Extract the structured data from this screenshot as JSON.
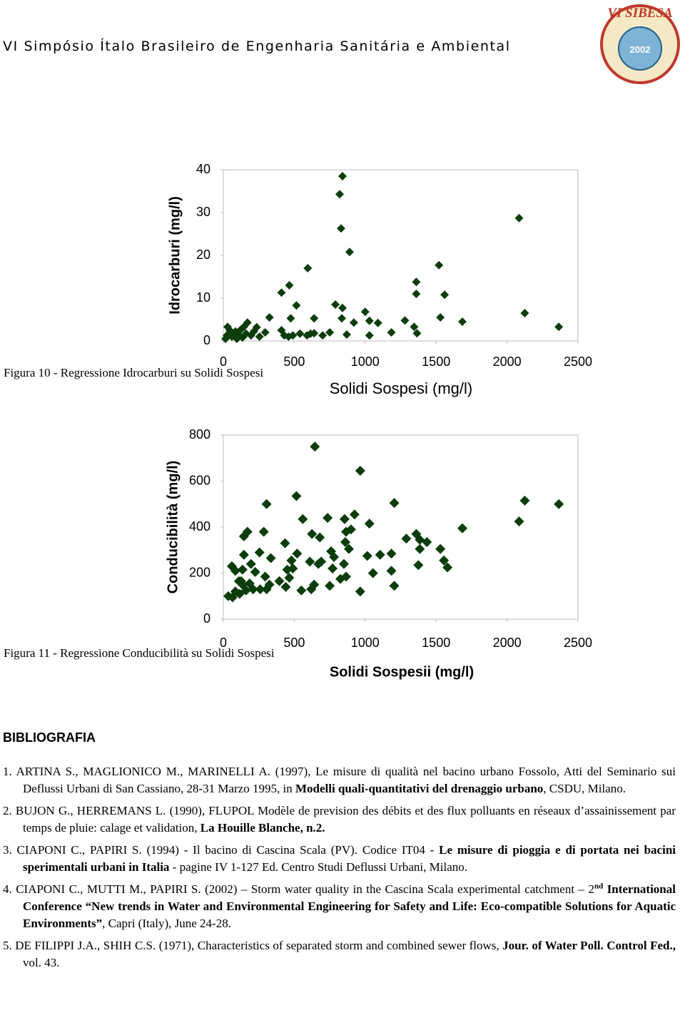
{
  "header": {
    "title": "VI Simpósio Ítalo Brasileiro de Engenharia Sanitária e Ambiental",
    "logo_title": "VI SIBESA",
    "logo_year": "2002"
  },
  "chart_data": [
    {
      "type": "scatter",
      "x_label": "Solidi Sospesi (mg/l)",
      "y_label": "Idrocarburi (mg/l)",
      "color": "#0b3d0b",
      "xlim": [
        0,
        2500
      ],
      "xticks": [
        0,
        500,
        1000,
        1500,
        2000,
        2500
      ],
      "ylim": [
        0,
        40
      ],
      "yticks": [
        0,
        10,
        20,
        30,
        40
      ],
      "x": [
        840,
        820,
        830,
        890,
        2085,
        595,
        1520,
        465,
        410,
        1360,
        1360,
        1560,
        515,
        790,
        325,
        475,
        640,
        840,
        835,
        1000,
        1030,
        920,
        1280,
        1530,
        1685,
        2125,
        2365,
        1090,
        1185,
        1345,
        1365,
        750,
        870,
        1030,
        700,
        540,
        410,
        430,
        460,
        490,
        590,
        615,
        640,
        295,
        255,
        195,
        170,
        145,
        125,
        85,
        45,
        30,
        25,
        60,
        95,
        135,
        215,
        235,
        160,
        15,
        70,
        110
      ],
      "values": [
        38.5,
        34.3,
        26.3,
        20.8,
        28.7,
        17,
        17.7,
        13,
        11.3,
        13.8,
        11,
        10.8,
        8.3,
        8.5,
        5.5,
        5.3,
        5.3,
        7.7,
        5.3,
        6.8,
        4.7,
        4.3,
        4.8,
        5.5,
        4.5,
        6.5,
        3.3,
        4.2,
        2,
        3.3,
        1.8,
        2,
        1.5,
        1.3,
        1.3,
        1.7,
        2.5,
        1.3,
        1,
        1.3,
        1.3,
        1.7,
        1.8,
        2,
        1,
        1.3,
        4.3,
        3.3,
        2.7,
        2.2,
        2.5,
        3.3,
        1.3,
        1,
        0.5,
        0.8,
        2.2,
        3.2,
        1.7,
        0.5,
        1.7,
        1.3
      ]
    },
    {
      "type": "scatter",
      "x_label": "Solidi Sospesii (mg/l)",
      "y_label": "Conducibilità (mg/l)",
      "color": "#0b3d0b",
      "xlim": [
        0,
        2500
      ],
      "xticks": [
        0,
        500,
        1000,
        1500,
        2000,
        2500
      ],
      "ylim": [
        0,
        800
      ],
      "yticks": [
        0,
        200,
        400,
        600,
        800
      ],
      "x": [
        645,
        965,
        2125,
        2365,
        515,
        305,
        1205,
        2085,
        1685,
        560,
        735,
        925,
        855,
        1030,
        865,
        900,
        625,
        680,
        285,
        170,
        145,
        1290,
        1360,
        1385,
        1435,
        1530,
        1385,
        1555,
        1580,
        1375,
        1185,
        1105,
        1015,
        760,
        780,
        860,
        885,
        435,
        520,
        480,
        610,
        670,
        690,
        770,
        850,
        865,
        825,
        1185,
        1055,
        965,
        1205,
        750,
        640,
        620,
        550,
        440,
        395,
        325,
        255,
        335,
        195,
        145,
        225,
        295,
        260,
        305,
        185,
        110,
        60,
        85,
        135,
        125,
        160,
        115,
        85,
        35,
        65,
        135,
        210,
        465,
        490,
        450
      ],
      "values": [
        750,
        645,
        515,
        500,
        535,
        500,
        505,
        425,
        395,
        435,
        440,
        455,
        435,
        415,
        380,
        390,
        370,
        355,
        380,
        380,
        360,
        350,
        370,
        345,
        335,
        305,
        305,
        255,
        225,
        235,
        285,
        280,
        275,
        295,
        270,
        335,
        305,
        330,
        285,
        255,
        250,
        240,
        250,
        220,
        240,
        185,
        175,
        210,
        200,
        120,
        145,
        145,
        150,
        130,
        125,
        140,
        165,
        150,
        290,
        265,
        240,
        280,
        205,
        185,
        130,
        130,
        155,
        165,
        230,
        210,
        215,
        165,
        125,
        110,
        120,
        100,
        95,
        150,
        130,
        180,
        220,
        215
      ]
    }
  ],
  "captions": [
    "Figura 10 - Regressione Idrocarburi su Solidi Sospesi",
    "Figura 11 - Regressione Conducibilità su Solidi Sospesi"
  ],
  "bibliography": {
    "heading": "BIBLIOGRAFIA",
    "entries": [
      [
        {
          "text": "1. ARTINA S., MAGLIONICO M., MARINELLI A. (1997), Le misure di qualità nel bacino urbano Fossolo, Atti del Seminario sui Deflussi Urbani di San Cassiano, 28-31 Marzo 1995, in "
        },
        {
          "text": "Modelli quali-quantitativi del drenaggio urbano",
          "bold": true
        },
        {
          "text": ", CSDU, Milano."
        }
      ],
      [
        {
          "text": "2. BUJON G., HERREMANS L. (1990), FLUPOL Modèle de prevision des débits et des flux polluants en réseaux d’assainissement par temps de pluie: calage et validation, "
        },
        {
          "text": "La Houille Blanche, n.2.",
          "bold": true
        }
      ],
      [
        {
          "text": "3. CIAPONI C., PAPIRI S. (1994) - Il bacino di Cascina Scala (PV). Codice IT04 - "
        },
        {
          "text": "Le misure di pioggia e di portata nei bacini sperimentali urbani in Italia",
          "bold": true
        },
        {
          "text": " - pagine IV 1-127 Ed. Centro Studi Deflussi Urbani, Milano."
        }
      ],
      [
        {
          "text": "4. CIAPONI C., MUTTI M., PAPIRI S. (2002) – Storm water quality in the Cascina Scala experimental catchment – 2"
        },
        {
          "text": "nd",
          "bold": true,
          "sup": true
        },
        {
          "text": " International Conference “New trends in Water and Environmental Engineering for Safety and Life: Eco-compatible Solutions for Aquatic Environments”",
          "bold": true
        },
        {
          "text": ", Capri (Italy), June 24-28."
        }
      ],
      [
        {
          "text": "5. DE FILIPPI J.A., SHIH C.S. (1971), Characteristics of separated storm and combined sewer flows, "
        },
        {
          "text": "Jour. of Water Poll. Control Fed.,",
          "bold": true
        },
        {
          "text": " vol. 43."
        }
      ]
    ]
  }
}
